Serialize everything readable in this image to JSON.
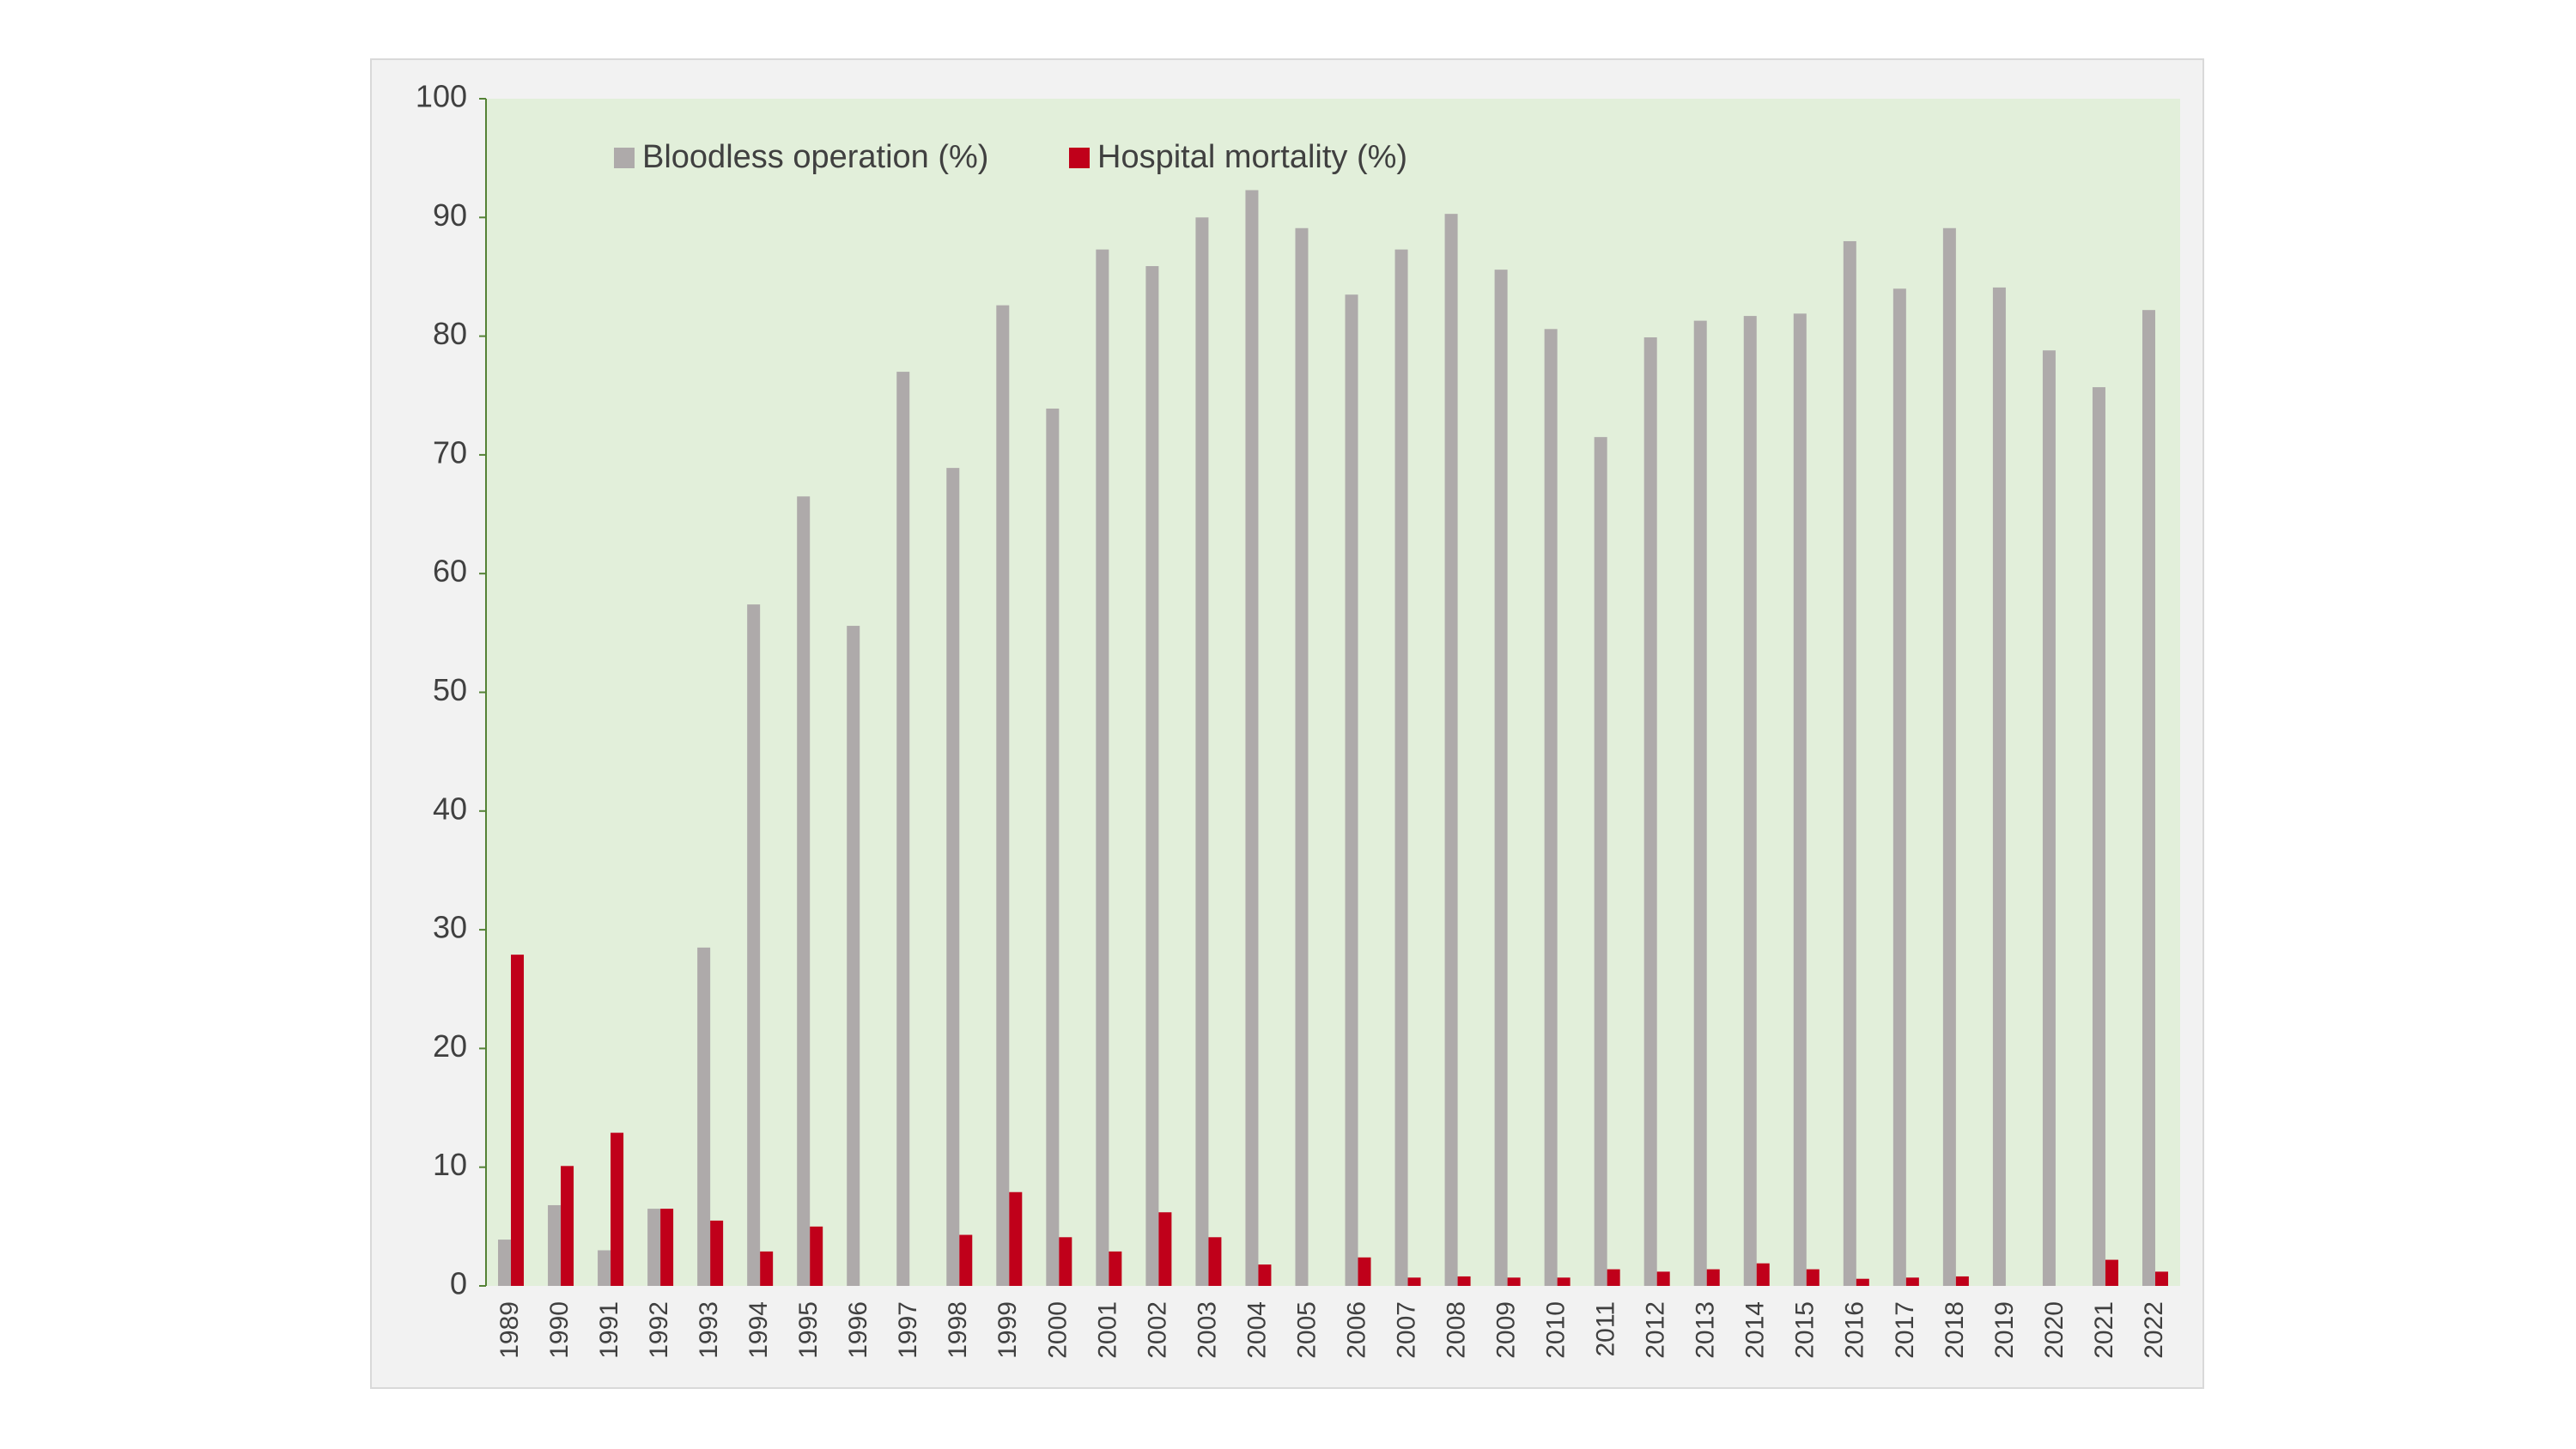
{
  "chart_data": {
    "type": "bar",
    "categories": [
      "1989",
      "1990",
      "1991",
      "1992",
      "1993",
      "1994",
      "1995",
      "1996",
      "1997",
      "1998",
      "1999",
      "2000",
      "2001",
      "2002",
      "2003",
      "2004",
      "2005",
      "2006",
      "2007",
      "2008",
      "2009",
      "2010",
      "2011",
      "2012",
      "2013",
      "2014",
      "2015",
      "2016",
      "2017",
      "2018",
      "2019",
      "2020",
      "2021",
      "2022"
    ],
    "series": [
      {
        "name": "Bloodless operation (%)",
        "color": "#aeaaaa",
        "values": [
          3.9,
          6.8,
          3.0,
          6.5,
          28.5,
          57.4,
          66.5,
          55.6,
          77.0,
          68.9,
          82.6,
          73.9,
          87.3,
          85.9,
          90.0,
          92.3,
          89.1,
          83.5,
          87.3,
          90.3,
          85.6,
          80.6,
          71.5,
          79.9,
          81.3,
          81.7,
          81.9,
          88.0,
          84.0,
          89.1,
          84.1,
          78.8,
          75.7,
          82.2
        ]
      },
      {
        "name": "Hospital mortality (%)",
        "color": "#c0001a",
        "values": [
          27.9,
          10.1,
          12.9,
          6.5,
          5.5,
          2.9,
          5.0,
          0,
          0,
          4.3,
          7.9,
          4.1,
          2.9,
          6.2,
          4.1,
          1.8,
          0,
          2.4,
          0.7,
          0.8,
          0.7,
          0.7,
          1.4,
          1.2,
          1.4,
          1.9,
          1.4,
          0.6,
          0.7,
          0.8,
          0,
          0,
          2.2,
          1.2
        ]
      }
    ],
    "ylim": [
      0,
      100
    ],
    "yticks": [
      0,
      10,
      20,
      30,
      40,
      50,
      60,
      70,
      80,
      90,
      100
    ],
    "grid": false
  }
}
